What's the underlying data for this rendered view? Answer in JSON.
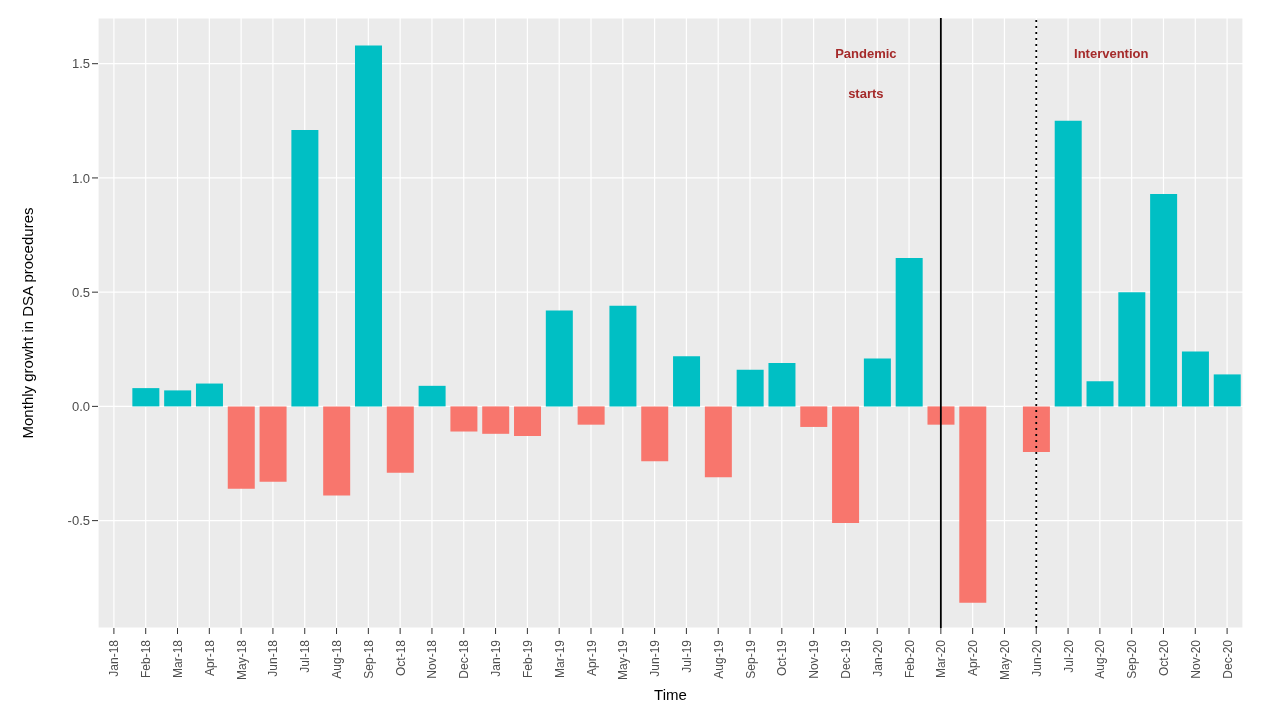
{
  "chart_data": {
    "type": "bar",
    "xlabel": "Time",
    "ylabel": "Monthly growht in DSA procedures",
    "categories": [
      "Jan-18",
      "Feb-18",
      "Mar-18",
      "Apr-18",
      "May-18",
      "Jun-18",
      "Jul-18",
      "Aug-18",
      "Sep-18",
      "Oct-18",
      "Nov-18",
      "Dec-18",
      "Jan-19",
      "Feb-19",
      "Mar-19",
      "Apr-19",
      "May-19",
      "Jun-19",
      "Jul-19",
      "Aug-19",
      "Sep-19",
      "Oct-19",
      "Nov-19",
      "Dec-19",
      "Jan-20",
      "Feb-20",
      "Mar-20",
      "Apr-20",
      "May-20",
      "Jun-20",
      "Jul-20",
      "Aug-20",
      "Sep-20",
      "Oct-20",
      "Nov-20",
      "Dec-20"
    ],
    "values": [
      null,
      0.08,
      0.07,
      0.1,
      -0.36,
      -0.33,
      1.21,
      -0.39,
      1.58,
      -0.29,
      0.09,
      -0.11,
      -0.12,
      -0.13,
      0.42,
      -0.08,
      0.44,
      -0.24,
      0.22,
      -0.31,
      0.16,
      0.19,
      -0.09,
      -0.51,
      0.21,
      0.65,
      -0.08,
      -0.86,
      null,
      -0.2,
      1.25,
      0.11,
      0.5,
      0.93,
      0.24,
      0.14
    ],
    "colors": [
      "#00bfc4",
      "#00bfc4",
      "#00bfc4",
      "#00bfc4",
      "#f8766d",
      "#f8766d",
      "#00bfc4",
      "#f8766d",
      "#00bfc4",
      "#f8766d",
      "#00bfc4",
      "#f8766d",
      "#f8766d",
      "#f8766d",
      "#00bfc4",
      "#f8766d",
      "#00bfc4",
      "#f8766d",
      "#00bfc4",
      "#f8766d",
      "#00bfc4",
      "#00bfc4",
      "#f8766d",
      "#f8766d",
      "#00bfc4",
      "#00bfc4",
      "#f8766d",
      "#f8766d",
      "#00bfc4",
      "#f8766d",
      "#00bfc4",
      "#00bfc4",
      "#00bfc4",
      "#00bfc4",
      "#00bfc4",
      "#00bfc4"
    ],
    "ylim": [
      -0.97,
      1.7
    ],
    "yticks": [
      {
        "value": -0.5,
        "label": "-0.5"
      },
      {
        "value": 0,
        "label": "0.0"
      },
      {
        "value": 0.5,
        "label": "0.5"
      },
      {
        "value": 1,
        "label": "1.0"
      },
      {
        "value": 1.5,
        "label": "1.5"
      }
    ],
    "ref_lines": [
      {
        "axis": "x",
        "value": "Mar-20",
        "label": "Pandemic starts",
        "color": "#000000",
        "line_style": "solid"
      },
      {
        "axis": "x",
        "value": "Jun-20",
        "label": "Intervention",
        "color": "#000000",
        "line_style": "dotted"
      }
    ],
    "grid": true
  }
}
